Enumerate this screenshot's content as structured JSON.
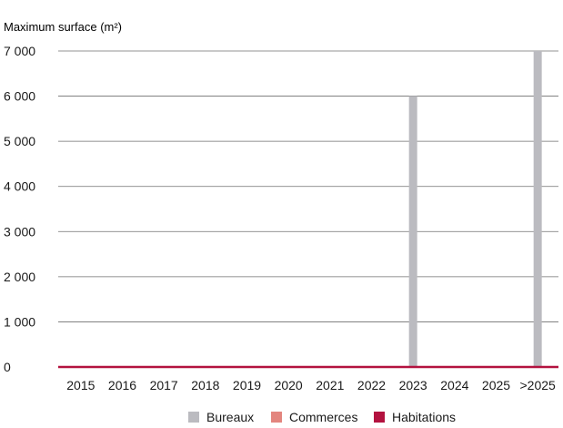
{
  "chart_data": {
    "type": "bar",
    "ylabel": "Maximum surface (m²)",
    "categories": [
      "2015",
      "2016",
      "2017",
      "2018",
      "2019",
      "2020",
      "2021",
      "2022",
      "2023",
      "2024",
      "2025",
      ">2025"
    ],
    "y_ticks": [
      "0",
      "1 000",
      "2 000",
      "3 000",
      "4 000",
      "5 000",
      "6 000",
      "7 000"
    ],
    "ylim": [
      0,
      7000
    ],
    "stacked": true,
    "grid": true,
    "legend_position": "bottom-center",
    "series": [
      {
        "name": "Bureaux",
        "color": "#bbbbc0",
        "values": [
          0,
          0,
          0,
          0,
          0,
          0,
          0,
          0,
          6000,
          0,
          0,
          7000
        ]
      },
      {
        "name": "Commerces",
        "color": "#e3857e",
        "values": [
          0,
          0,
          0,
          0,
          0,
          0,
          0,
          0,
          0,
          0,
          0,
          0
        ]
      },
      {
        "name": "Habitations",
        "color": "#b3123f",
        "values": [
          0,
          0,
          0,
          0,
          0,
          0,
          0,
          0,
          0,
          0,
          0,
          0
        ]
      }
    ]
  }
}
